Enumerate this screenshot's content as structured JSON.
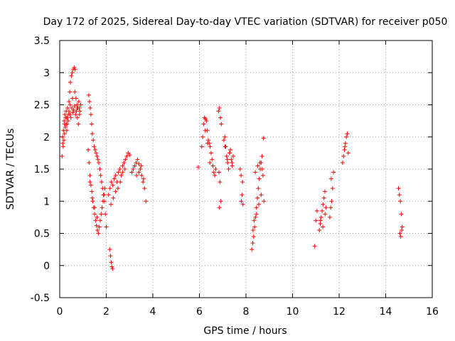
{
  "chart_data": {
    "type": "scatter",
    "title": "Day 172 of 2025, Sidereal Day-to-day VTEC variation (SDTVAR) for receiver p050",
    "xlabel": "GPS time / hours",
    "ylabel": "SDTVAR / TECUs",
    "xlim": [
      0,
      16
    ],
    "ylim": [
      -0.5,
      3.5
    ],
    "xticks": [
      0,
      2,
      4,
      6,
      8,
      10,
      12,
      14,
      16
    ],
    "yticks": [
      -0.5,
      0,
      0.5,
      1,
      1.5,
      2,
      2.5,
      3,
      3.5
    ],
    "grid": true,
    "marker": "+",
    "color": "#ff0000",
    "series": [
      {
        "name": "SDTVAR",
        "x": [
          0.1,
          0.13,
          0.16,
          0.19,
          0.22,
          0.25,
          0.28,
          0.31,
          0.34,
          0.37,
          0.4,
          0.43,
          0.46,
          0.5,
          0.54,
          0.58,
          0.62,
          0.66,
          0.7,
          0.74,
          0.78,
          0.82,
          0.86,
          0.9,
          0.12,
          0.15,
          0.18,
          0.21,
          0.24,
          0.27,
          0.3,
          0.33,
          0.36,
          0.4,
          0.44,
          0.48,
          0.52,
          0.56,
          0.6,
          0.64,
          0.68,
          0.72,
          0.76,
          0.8,
          0.84,
          0.2,
          0.3,
          0.45,
          0.55,
          0.65,
          0.75,
          0.85,
          1.25,
          1.28,
          1.31,
          1.34,
          1.37,
          1.4,
          1.44,
          1.48,
          1.52,
          1.56,
          1.6,
          1.64,
          1.68,
          1.72,
          1.76,
          1.8,
          1.84,
          1.88,
          1.92,
          1.96,
          2.0,
          1.22,
          1.26,
          1.3,
          1.34,
          1.38,
          1.42,
          1.46,
          1.5,
          1.54,
          1.58,
          1.62,
          1.66,
          1.7,
          1.74,
          1.78,
          1.82,
          1.86,
          1.9,
          1.94,
          1.3,
          1.4,
          1.5,
          1.6,
          2.15,
          2.18,
          2.21,
          2.24,
          2.27,
          2.1,
          2.16,
          2.22,
          2.28,
          2.34,
          2.4,
          2.46,
          2.52,
          2.58,
          2.64,
          2.7,
          2.76,
          2.82,
          2.88,
          2.94,
          3.0,
          2.2,
          2.3,
          2.4,
          2.5,
          2.6,
          2.7,
          2.8,
          3.1,
          3.16,
          3.22,
          3.28,
          3.34,
          3.4,
          3.46,
          3.52,
          3.58,
          3.64,
          3.7,
          3.3,
          3.4,
          3.5,
          3.6,
          5.95,
          6.1,
          6.14,
          6.18,
          6.22,
          6.26,
          6.3,
          6.34,
          6.38,
          6.42,
          6.46,
          6.5,
          6.54,
          6.58,
          6.62,
          6.66,
          6.7,
          6.25,
          6.35,
          6.45,
          6.82,
          6.86,
          6.9,
          6.94,
          6.84,
          6.88,
          6.92,
          6.86,
          7.05,
          7.09,
          7.13,
          7.17,
          7.21,
          7.25,
          7.29,
          7.33,
          7.37,
          7.41,
          7.45,
          7.1,
          7.2,
          7.3,
          7.4,
          7.75,
          7.79,
          7.83,
          7.87,
          7.8,
          7.85,
          8.25,
          8.29,
          8.33,
          8.37,
          8.41,
          8.45,
          8.49,
          8.53,
          8.57,
          8.61,
          8.65,
          8.69,
          8.73,
          8.77,
          8.3,
          8.4,
          8.5,
          8.6,
          8.7,
          8.35,
          8.45,
          8.55,
          8.65,
          8.75,
          10.95,
          11.0,
          11.05,
          11.15,
          11.19,
          11.23,
          11.27,
          11.31,
          11.35,
          11.39,
          11.43,
          11.2,
          11.3,
          11.4,
          11.6,
          11.64,
          11.68,
          11.72,
          11.76,
          11.66,
          12.15,
          12.19,
          12.23,
          12.27,
          12.31,
          12.35,
          12.39,
          12.25,
          14.55,
          14.59,
          14.63,
          14.67,
          14.71,
          14.61,
          14.65,
          14.69
        ],
        "y": [
          1.7,
          1.9,
          2.1,
          2.25,
          2.35,
          2.3,
          2.4,
          2.2,
          2.45,
          2.35,
          2.55,
          2.7,
          2.85,
          2.95,
          3.0,
          3.05,
          3.08,
          3.05,
          2.6,
          2.5,
          2.45,
          2.55,
          2.4,
          2.5,
          2.0,
          1.85,
          1.95,
          2.05,
          2.15,
          2.2,
          2.1,
          2.3,
          2.25,
          2.4,
          2.35,
          2.3,
          2.45,
          2.38,
          2.42,
          2.48,
          2.35,
          2.4,
          2.3,
          2.2,
          2.45,
          2.2,
          2.3,
          2.5,
          2.6,
          2.7,
          2.45,
          2.35,
          2.65,
          2.55,
          2.45,
          2.35,
          2.2,
          2.05,
          1.95,
          1.85,
          1.8,
          1.75,
          1.7,
          1.65,
          1.6,
          1.5,
          1.4,
          1.3,
          1.2,
          1.1,
          1.0,
          0.8,
          0.6,
          1.8,
          1.6,
          1.4,
          1.25,
          1.15,
          1.0,
          0.9,
          0.8,
          0.7,
          0.62,
          0.55,
          0.5,
          0.6,
          0.7,
          0.8,
          0.9,
          1.0,
          1.1,
          1.2,
          1.3,
          1.05,
          0.9,
          0.75,
          0.25,
          0.15,
          0.05,
          -0.02,
          -0.05,
          1.1,
          1.2,
          1.3,
          1.25,
          1.35,
          1.4,
          1.3,
          1.45,
          1.5,
          1.4,
          1.55,
          1.6,
          1.65,
          1.7,
          1.75,
          1.72,
          0.95,
          1.05,
          1.15,
          1.2,
          1.3,
          1.45,
          1.5,
          1.45,
          1.5,
          1.55,
          1.6,
          1.65,
          1.58,
          1.5,
          1.4,
          1.3,
          1.2,
          1.0,
          1.4,
          1.45,
          1.55,
          1.35,
          1.53,
          1.85,
          2.0,
          2.2,
          2.3,
          2.28,
          2.25,
          2.1,
          1.95,
          1.9,
          1.85,
          1.75,
          1.65,
          1.55,
          1.45,
          1.4,
          1.5,
          2.1,
          1.9,
          1.6,
          2.4,
          2.45,
          2.3,
          2.2,
          1.45,
          1.3,
          1.0,
          0.9,
          1.95,
          2.0,
          1.85,
          1.7,
          1.6,
          1.5,
          1.75,
          1.8,
          1.65,
          1.55,
          1.7,
          1.85,
          1.65,
          1.75,
          1.6,
          1.5,
          1.4,
          1.1,
          0.95,
          1.0,
          1.3,
          0.25,
          0.35,
          0.45,
          0.6,
          0.75,
          0.9,
          1.05,
          1.2,
          1.35,
          1.5,
          1.6,
          1.7,
          1.4,
          1.0,
          0.55,
          1.45,
          1.55,
          1.6,
          1.5,
          0.7,
          0.8,
          0.95,
          1.1,
          1.98,
          0.3,
          0.7,
          0.85,
          0.55,
          0.65,
          0.75,
          0.85,
          0.95,
          1.05,
          1.15,
          0.9,
          0.7,
          0.6,
          0.8,
          0.75,
          0.9,
          1.0,
          1.2,
          1.45,
          1.35,
          1.6,
          1.7,
          1.8,
          1.9,
          2.0,
          2.05,
          1.75,
          1.85,
          1.2,
          1.1,
          1.0,
          0.8,
          0.6,
          0.5,
          0.45,
          0.55
        ]
      }
    ]
  }
}
